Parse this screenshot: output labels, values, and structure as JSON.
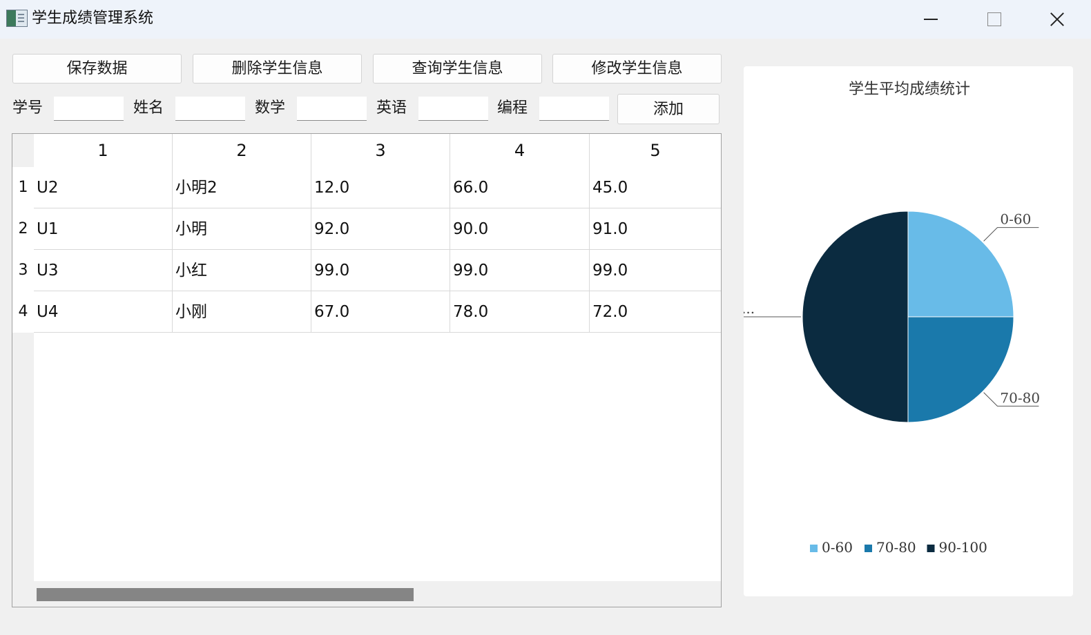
{
  "window": {
    "title": "学生成绩管理系统",
    "icon": "spreadsheet-app-icon"
  },
  "toolbar": {
    "save_label": "保存数据",
    "delete_label": "删除学生信息",
    "query_label": "查询学生信息",
    "modify_label": "修改学生信息"
  },
  "form": {
    "id_label": "学号",
    "name_label": "姓名",
    "math_label": "数学",
    "english_label": "英语",
    "programming_label": "编程",
    "id_value": "",
    "name_value": "",
    "math_value": "",
    "english_value": "",
    "programming_value": "",
    "add_label": "添加"
  },
  "table": {
    "columns": [
      "1",
      "2",
      "3",
      "4",
      "5"
    ],
    "row_headers": [
      "1",
      "2",
      "3",
      "4"
    ],
    "rows": [
      [
        "U2",
        "小明2",
        "12.0",
        "66.0",
        "45.0"
      ],
      [
        "U1",
        "小明",
        "92.0",
        "90.0",
        "91.0"
      ],
      [
        "U3",
        "小红",
        "99.0",
        "99.0",
        "99.0"
      ],
      [
        "U4",
        "小刚",
        "67.0",
        "78.0",
        "72.0"
      ]
    ]
  },
  "chart_data": {
    "type": "pie",
    "title": "学生平均成绩统计",
    "slices": [
      {
        "label": "0-60",
        "value": 1,
        "color": "#68bbe8",
        "slice_label": "0-60"
      },
      {
        "label": "70-80",
        "value": 1,
        "color": "#1a79ab",
        "slice_label": "70-80"
      },
      {
        "label": "90-100",
        "value": 2,
        "color": "#0b2b40",
        "slice_label": "..."
      }
    ],
    "legend": [
      "0-60",
      "70-80",
      "90-100"
    ],
    "legend_position": "bottom"
  }
}
